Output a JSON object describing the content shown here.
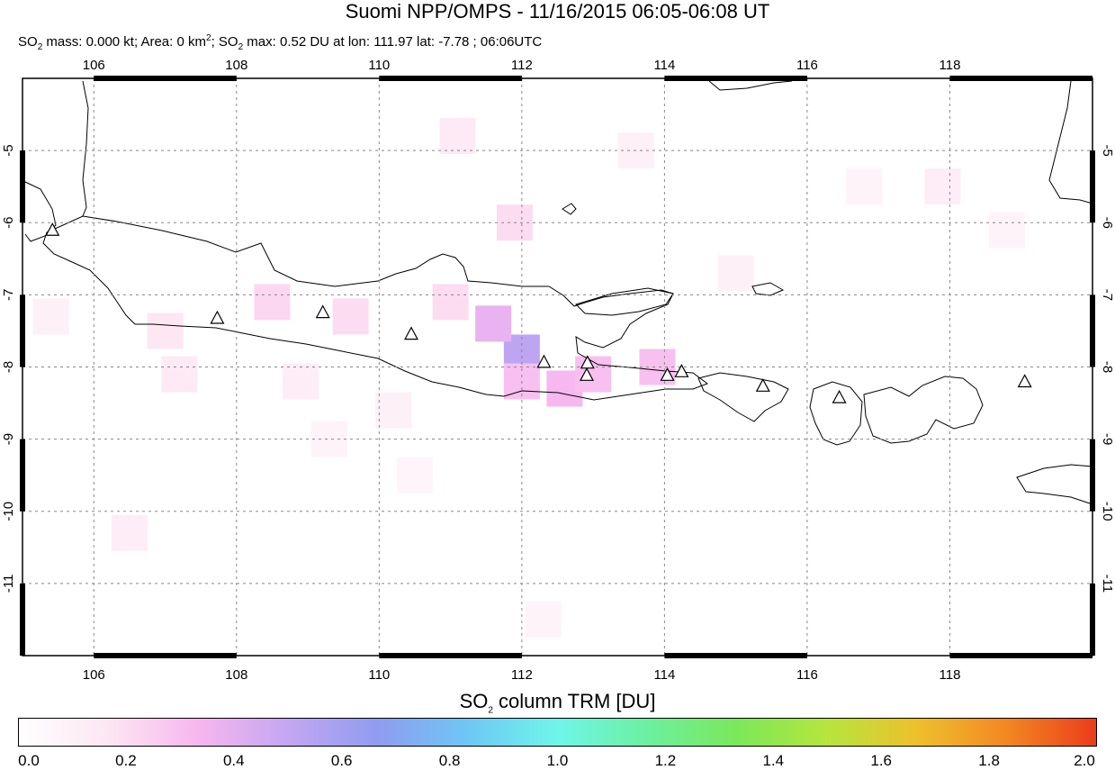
{
  "title": "Suomi NPP/OMPS - 11/16/2015 06:05-06:08 UT",
  "subtitle": {
    "part1": "SO",
    "sub1": "2",
    "part2": " mass: 0.000 kt; Area: 0 km",
    "sup1": "2",
    "part3": "; SO",
    "sub2": "2",
    "part4": " max: 0.52 DU at lon: 111.97 lat: -7.78 ; 06:06UTC"
  },
  "map": {
    "lon_range": [
      105,
      120
    ],
    "lat_range": [
      -12,
      -4
    ],
    "lon_ticks": [
      "106",
      "108",
      "110",
      "112",
      "114",
      "116",
      "118"
    ],
    "lat_ticks": [
      "-5",
      "-6",
      "-7",
      "-8",
      "-9",
      "-10",
      "-11"
    ],
    "volcanoes": [
      {
        "lon": 105.42,
        "lat": -6.1
      },
      {
        "lon": 107.73,
        "lat": -7.32
      },
      {
        "lon": 109.21,
        "lat": -7.24
      },
      {
        "lon": 110.45,
        "lat": -7.54
      },
      {
        "lon": 112.31,
        "lat": -7.93
      },
      {
        "lon": 112.92,
        "lat": -7.94
      },
      {
        "lon": 112.91,
        "lat": -8.11
      },
      {
        "lon": 114.04,
        "lat": -8.11
      },
      {
        "lon": 114.24,
        "lat": -8.06
      },
      {
        "lon": 115.38,
        "lat": -8.26
      },
      {
        "lon": 116.45,
        "lat": -8.42
      },
      {
        "lon": 119.05,
        "lat": -8.2
      }
    ],
    "so2_cells": [
      {
        "lon": 112.0,
        "lat": -7.8,
        "du": 0.52
      },
      {
        "lon": 111.6,
        "lat": -7.4,
        "du": 0.38
      },
      {
        "lon": 112.6,
        "lat": -8.3,
        "du": 0.33
      },
      {
        "lon": 113.0,
        "lat": -8.1,
        "du": 0.3
      },
      {
        "lon": 113.9,
        "lat": -8.0,
        "du": 0.3
      },
      {
        "lon": 112.0,
        "lat": -8.2,
        "du": 0.3
      },
      {
        "lon": 111.0,
        "lat": -7.1,
        "du": 0.2
      },
      {
        "lon": 108.5,
        "lat": -7.1,
        "du": 0.22
      },
      {
        "lon": 109.6,
        "lat": -7.3,
        "du": 0.2
      },
      {
        "lon": 107.0,
        "lat": -7.5,
        "du": 0.16
      },
      {
        "lon": 107.2,
        "lat": -8.1,
        "du": 0.14
      },
      {
        "lon": 108.9,
        "lat": -8.2,
        "du": 0.12
      },
      {
        "lon": 110.2,
        "lat": -8.6,
        "du": 0.1
      },
      {
        "lon": 111.1,
        "lat": -4.8,
        "du": 0.14
      },
      {
        "lon": 111.9,
        "lat": -6.0,
        "du": 0.2
      },
      {
        "lon": 113.6,
        "lat": -5.0,
        "du": 0.1
      },
      {
        "lon": 115.0,
        "lat": -6.7,
        "du": 0.1
      },
      {
        "lon": 117.9,
        "lat": -5.5,
        "du": 0.12
      },
      {
        "lon": 106.5,
        "lat": -10.3,
        "du": 0.12
      },
      {
        "lon": 109.3,
        "lat": -9.0,
        "du": 0.08
      },
      {
        "lon": 112.3,
        "lat": -11.5,
        "du": 0.08
      },
      {
        "lon": 110.5,
        "lat": -9.5,
        "du": 0.07
      },
      {
        "lon": 105.4,
        "lat": -7.3,
        "du": 0.1
      },
      {
        "lon": 116.8,
        "lat": -5.5,
        "du": 0.08
      },
      {
        "lon": 118.8,
        "lat": -6.1,
        "du": 0.08
      }
    ]
  },
  "colorbar": {
    "title_main": "SO",
    "title_sub": "2",
    "title_rest": " column TRM [DU]",
    "ticks": [
      "0.0",
      "0.2",
      "0.4",
      "0.6",
      "0.8",
      "1.0",
      "1.2",
      "1.4",
      "1.6",
      "1.8",
      "2.0"
    ],
    "colors": [
      "#ffffff",
      "#fde6f2",
      "#f7b6ef",
      "#c4a6f2",
      "#8f9cf0",
      "#6ec7f5",
      "#6ff5ea",
      "#6cf0a0",
      "#7be85a",
      "#b6e53c",
      "#eec02c",
      "#f28722",
      "#ec3d1c"
    ]
  }
}
